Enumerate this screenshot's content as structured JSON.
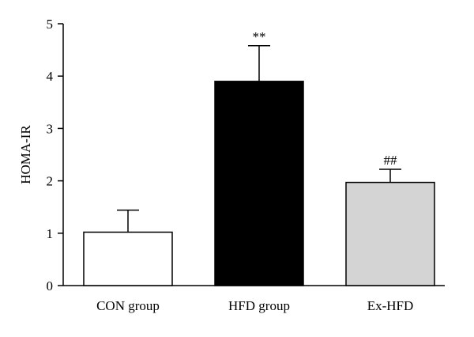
{
  "chart_data": {
    "type": "bar",
    "ylabel": "HOMA-IR",
    "xlabel": "",
    "ylim": [
      0,
      5
    ],
    "yticks": [
      "0",
      "1",
      "2",
      "3",
      "4",
      "5"
    ],
    "categories": [
      "CON group",
      "HFD group",
      "Ex-HFD"
    ],
    "values": [
      1.02,
      3.9,
      1.97
    ],
    "errors": [
      0.42,
      0.68,
      0.25
    ],
    "annotations": [
      "",
      "**",
      "##"
    ],
    "colors": [
      "#ffffff",
      "#000000",
      "#d4d4d4"
    ],
    "grid": false,
    "legend": "none"
  }
}
